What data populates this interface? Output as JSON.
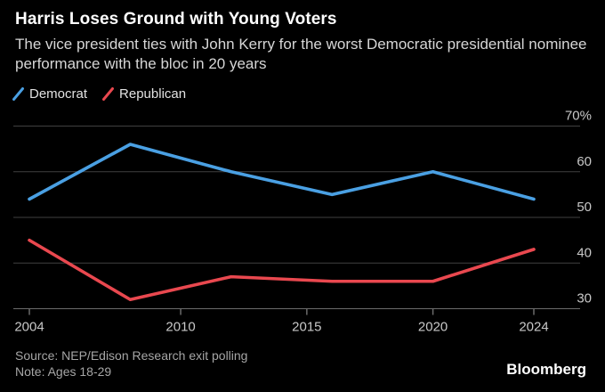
{
  "header": {
    "title": "Harris Loses Ground with Young Voters",
    "subtitle": "The vice president ties with John Kerry for the worst Democratic presidential nominee performance with the bloc in 20 years"
  },
  "legend": [
    {
      "label": "Democrat",
      "color": "#4AA0E3"
    },
    {
      "label": "Republican",
      "color": "#E9484F"
    }
  ],
  "chart_data": {
    "type": "line",
    "title": "Harris Loses Ground with Young Voters",
    "x": [
      2004,
      2008,
      2012,
      2016,
      2020,
      2024
    ],
    "series": [
      {
        "name": "Democrat",
        "color": "#4AA0E3",
        "values": [
          54,
          66,
          60,
          55,
          60,
          54
        ]
      },
      {
        "name": "Republican",
        "color": "#E9484F",
        "values": [
          45,
          32,
          37,
          36,
          36,
          43
        ]
      }
    ],
    "ylim": [
      30,
      70
    ],
    "y_ticks": [
      {
        "value": 70,
        "label": "70%"
      },
      {
        "value": 60,
        "label": "60"
      },
      {
        "value": 50,
        "label": "50"
      },
      {
        "value": 40,
        "label": "40"
      },
      {
        "value": 30,
        "label": "30"
      }
    ],
    "x_ticks": [
      2004,
      2010,
      2015,
      2020,
      2024
    ],
    "grid": true,
    "legend_position": "top-left",
    "xlabel": "",
    "ylabel": ""
  },
  "footer": {
    "source": "Source: NEP/Edison Research exit polling",
    "note": "Note: Ages 18-29",
    "brand": "Bloomberg"
  },
  "colors": {
    "background": "#000000",
    "democrat": "#4AA0E3",
    "republican": "#E9484F",
    "grid": "#414141",
    "axis": "#6B6B6B",
    "axis_label": "#C8C8C8",
    "title": "#FFFFFF",
    "subtitle": "#D6D6D6",
    "footnote": "#A6A6A6"
  }
}
